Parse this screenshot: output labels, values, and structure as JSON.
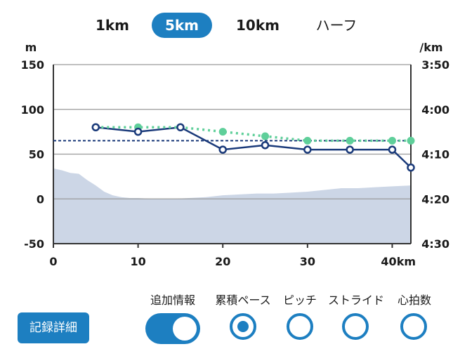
{
  "tabs": [
    {
      "label": "1km",
      "active": false
    },
    {
      "label": "5km",
      "active": true
    },
    {
      "label": "10km",
      "active": false
    },
    {
      "label": "ハーフ",
      "active": false
    }
  ],
  "chart_data": {
    "type": "line",
    "left_axis": {
      "unit": "m",
      "range": [
        -50,
        150
      ],
      "ticks": [
        "150",
        "100",
        "50",
        "0",
        "-50"
      ]
    },
    "right_axis": {
      "unit": "/km",
      "range": [
        "4:30",
        "3:50"
      ],
      "ticks": [
        "3:50",
        "4:00",
        "4:10",
        "4:20",
        "4:30"
      ]
    },
    "x_axis": {
      "range": [
        0,
        42.2
      ],
      "ticks": [
        "0",
        "10",
        "20",
        "30",
        "40km"
      ]
    },
    "pace_average_m": 65,
    "series": [
      {
        "x": [
          5,
          10,
          15,
          20,
          25,
          30,
          35,
          40,
          42.2
        ],
        "values": [
          80,
          75,
          80,
          55,
          60,
          55,
          55,
          55,
          35
        ],
        "color": "#1a3a7a"
      },
      {
        "x": [
          5,
          10,
          15,
          20,
          25,
          30,
          35,
          40,
          42.2
        ],
        "values": [
          80,
          80,
          80,
          75,
          70,
          65,
          65,
          65,
          65
        ],
        "color": "#5fcf9a"
      }
    ],
    "elevation_profile": {
      "x": [
        0,
        1,
        2,
        3,
        4,
        5,
        6,
        7,
        8,
        9,
        10,
        12,
        14,
        16,
        18,
        20,
        22,
        24,
        26,
        28,
        30,
        32,
        34,
        36,
        38,
        40,
        42.2
      ],
      "values": [
        34,
        32,
        29,
        28,
        21,
        15,
        8,
        4,
        2,
        1,
        1,
        0,
        0,
        1,
        2,
        4,
        5,
        6,
        6,
        7,
        8,
        10,
        12,
        12,
        13,
        14,
        15
      ],
      "color": "#ccd6e6"
    }
  },
  "options": {
    "detail_button": "記録詳細",
    "items": [
      {
        "label": "追加情報",
        "type": "toggle",
        "on": true
      },
      {
        "label": "累積ペース",
        "type": "radio",
        "selected": true
      },
      {
        "label": "ピッチ",
        "type": "radio",
        "selected": false
      },
      {
        "label": "ストライド",
        "type": "radio",
        "selected": false
      },
      {
        "label": "心拍数",
        "type": "radio",
        "selected": false
      }
    ],
    "accent_color": "#1d7fc1"
  }
}
